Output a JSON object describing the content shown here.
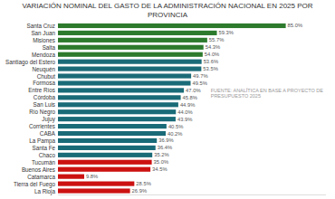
{
  "chart_data": {
    "type": "bar",
    "orientation": "horizontal",
    "title": "VARIACIÓN NOMINAL DEL GASTO DE LA ADMINISTRACIÓN NACIONAL EN 2025 POR PROVINCIA",
    "annotations": [
      "FUENTE: ANALÍTICA EN BASE A PROYECTO DE PRESUPUESTO 2025"
    ],
    "categories": [
      "Santa Cruz",
      "San Juan",
      "Misiones",
      "Salta",
      "Mendoza",
      "Santiago del Estero",
      "Neuquén",
      "Chubut",
      "Formosa",
      "Entre Ríos",
      "Córdoba",
      "San Luis",
      "Río Negro",
      "Jujuy",
      "Corrientes",
      "CABA",
      "La Pampa",
      "Santa Fe",
      "Chaco",
      "Tucumán",
      "Buenos Aires",
      "Catamarca",
      "Tierra del Fuego",
      "La Rioja"
    ],
    "values": [
      85.0,
      59.3,
      55.7,
      54.3,
      54.0,
      53.6,
      53.5,
      49.7,
      49.5,
      47.0,
      45.8,
      44.9,
      44.0,
      43.9,
      40.5,
      40.2,
      36.9,
      36.4,
      35.2,
      35.0,
      34.5,
      9.8,
      28.5,
      26.9
    ],
    "value_labels": [
      "85.0%",
      "59.3%",
      "55.7%",
      "54.3%",
      "54.0%",
      "53.6%",
      "53.5%",
      "49.7%",
      "49.5%",
      "47.0%",
      "45.8%",
      "44.9%",
      "44.0%",
      "43.9%",
      "40.5%",
      "40.2%",
      "36.9%",
      "36.4%",
      "35.2%",
      "35.0%",
      "34.5%",
      "9.8%",
      "28.5%",
      "26.9%"
    ],
    "colors": [
      "#2d7a2d",
      "#2d7a2d",
      "#2d7a2d",
      "#2d7a2d",
      "#2d7a2d",
      "#1a6b78",
      "#1a6b78",
      "#1a6b78",
      "#1a6b78",
      "#1a6b78",
      "#1a6b78",
      "#1a6b78",
      "#1a6b78",
      "#1a6b78",
      "#1a6b78",
      "#1a6b78",
      "#1a6b78",
      "#1a6b78",
      "#1a6b78",
      "#cc1111",
      "#cc1111",
      "#cc1111",
      "#cc1111",
      "#cc1111"
    ],
    "xlim": [
      0,
      100
    ],
    "data_labels": true,
    "tick_labels": "y"
  }
}
